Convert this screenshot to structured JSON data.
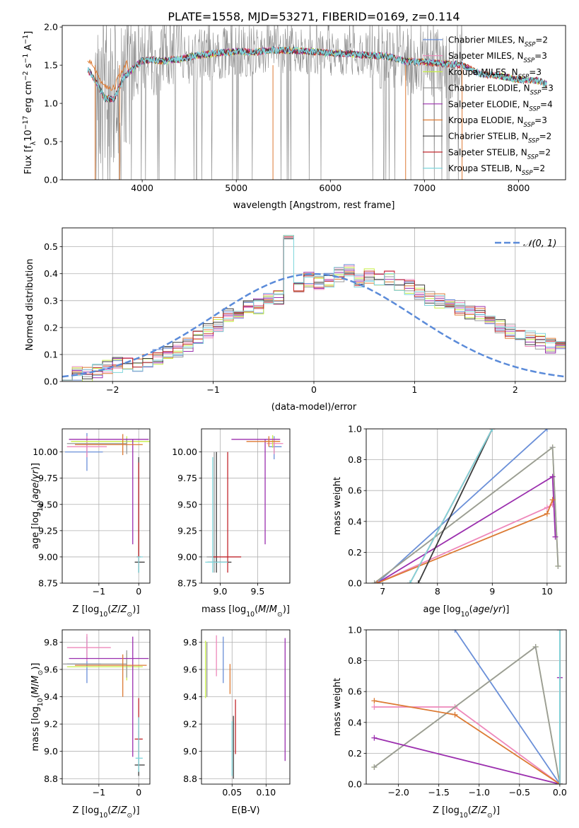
{
  "figure": {
    "title": "PLATE=1558, MJD=53271, FIBERID=0169, z=0.114"
  },
  "colors": {
    "Chabrier MILES": "#6a8fd8",
    "Salpeter MILES": "#ee88bb",
    "Kroupa MILES": "#c6ee44",
    "Chabrier ELODIE": "#9a9a9a",
    "Salpeter ELODIE": "#9b2fae",
    "Kroupa ELODIE": "#dc7a33",
    "Chabrier STELIB": "#3c3c3c",
    "Salpeter STELIB": "#c1272d",
    "Kroupa STELIB": "#7fd6dc"
  },
  "chart_data": [
    {
      "id": "spectrum",
      "type": "line",
      "title": "PLATE=1558, MJD=53271, FIBERID=0169, z=0.114",
      "xlabel": "wavelength [Angstrom, rest frame]",
      "ylabel": "Flux [f_λ 10^-17 erg cm^-2 s^-1 A^-1]",
      "xlim": [
        3150,
        8500
      ],
      "ylim": [
        0,
        2.02
      ],
      "xticks": [
        "4000",
        "5000",
        "6000",
        "7000",
        "8000"
      ],
      "yticks": [
        "0.0",
        "0.5",
        "1.0",
        "1.5",
        "2.0"
      ],
      "legend": "right",
      "legend_entries": [
        {
          "label": "Chabrier MILES, N",
          "sub": "SSP",
          "tail": "=2",
          "key": "Chabrier MILES"
        },
        {
          "label": "Salpeter MILES, N",
          "sub": "SSP",
          "tail": "=3",
          "key": "Salpeter MILES"
        },
        {
          "label": "Kroupa MILES, N",
          "sub": "SSP",
          "tail": "=3",
          "key": "Kroupa MILES"
        },
        {
          "label": "Chabrier ELODIE, N",
          "sub": "SSP",
          "tail": "=3",
          "key": "Chabrier ELODIE"
        },
        {
          "label": "Salpeter ELODIE, N",
          "sub": "SSP",
          "tail": "=4",
          "key": "Salpeter ELODIE"
        },
        {
          "label": "Kroupa ELODIE, N",
          "sub": "SSP",
          "tail": "=3",
          "key": "Kroupa ELODIE"
        },
        {
          "label": "Chabrier STELIB, N",
          "sub": "SSP",
          "tail": "=2",
          "key": "Chabrier STELIB"
        },
        {
          "label": "Salpeter STELIB, N",
          "sub": "SSP",
          "tail": "=2",
          "key": "Salpeter STELIB"
        },
        {
          "label": "Kroupa STELIB, N",
          "sub": "SSP",
          "tail": "=2",
          "key": "Kroupa STELIB"
        }
      ],
      "model_continuum": {
        "x": [
          3420,
          3500,
          3600,
          3700,
          3800,
          3900,
          4000,
          4100,
          4200,
          4400,
          4600,
          4800,
          5000,
          5200,
          5400,
          5600,
          5800,
          6000,
          6200,
          6400,
          6600,
          6800,
          7000,
          7200,
          7400,
          7600,
          7800,
          8000,
          8200,
          8300
        ],
        "y": [
          1.45,
          1.3,
          1.07,
          1.05,
          1.33,
          1.45,
          1.56,
          1.57,
          1.55,
          1.58,
          1.63,
          1.66,
          1.68,
          1.67,
          1.7,
          1.69,
          1.68,
          1.66,
          1.65,
          1.63,
          1.62,
          1.55,
          1.54,
          1.52,
          1.5,
          1.38,
          1.36,
          1.31,
          1.3,
          1.25
        ]
      }
    },
    {
      "id": "residuals",
      "type": "histogram",
      "xlabel": "(data-model)/error",
      "ylabel": "Normed distribution",
      "xlim": [
        -2.5,
        2.5
      ],
      "ylim": [
        0,
        0.57
      ],
      "xticks": [
        "−2",
        "−1",
        "0",
        "1",
        "2"
      ],
      "yticks": [
        "0.0",
        "0.1",
        "0.2",
        "0.3",
        "0.4",
        "0.5"
      ],
      "grid": true,
      "legend": "top-right",
      "gaussian_label": "𝒩(0, 1)",
      "bin_width": 0.1,
      "bin_start": -2.5,
      "base_values": [
        0.02,
        0.025,
        0.03,
        0.04,
        0.05,
        0.06,
        0.07,
        0.065,
        0.08,
        0.09,
        0.1,
        0.12,
        0.14,
        0.17,
        0.19,
        0.21,
        0.24,
        0.25,
        0.27,
        0.28,
        0.3,
        0.31,
        0.33,
        0.34,
        0.38,
        0.37,
        0.38,
        0.4,
        0.41,
        0.38,
        0.39,
        0.37,
        0.38,
        0.36,
        0.35,
        0.33,
        0.31,
        0.3,
        0.29,
        0.27,
        0.26,
        0.25,
        0.22,
        0.2,
        0.19,
        0.17,
        0.16,
        0.15,
        0.13,
        0.12,
        0.1
      ]
    },
    {
      "id": "age-Z",
      "type": "scatter",
      "xlabel": "Z [log10(Z/Z⊙)]",
      "ylabel": "age  [log10(age/yr)]",
      "xlim": [
        -1.92,
        0.28
      ],
      "ylim": [
        8.75,
        10.22
      ],
      "xticks": [
        -1,
        0
      ],
      "yticks": [
        8.75,
        9.0,
        9.25,
        9.5,
        9.75,
        10.0
      ],
      "points": [
        {
          "series": "Chabrier MILES",
          "x": -1.3,
          "y": 10.0,
          "xerr": [
            0.55,
            0.4
          ],
          "yerr": [
            0.18,
            0.18
          ]
        },
        {
          "series": "Salpeter MILES",
          "x": -1.3,
          "y": 10.05,
          "xerr": [
            0.5,
            0.5
          ],
          "yerr": [
            0.1,
            0.1
          ]
        },
        {
          "series": "Kroupa MILES",
          "x": -0.3,
          "y": 10.1,
          "xerr": [
            1.4,
            0.6
          ],
          "yerr": [
            0.05,
            0.05
          ]
        },
        {
          "series": "Chabrier ELODIE",
          "x": -0.3,
          "y": 10.08,
          "xerr": [
            1.5,
            0.0
          ],
          "yerr": [
            0.1,
            0.05
          ]
        },
        {
          "series": "Salpeter ELODIE",
          "x": -0.15,
          "y": 10.12,
          "xerr": [
            1.6,
            0.4
          ],
          "yerr": [
            1.0,
            0.0
          ]
        },
        {
          "series": "Kroupa ELODIE",
          "x": -0.4,
          "y": 10.07,
          "xerr": [
            1.2,
            0.5
          ],
          "yerr": [
            0.1,
            0.1
          ]
        },
        {
          "series": "Chabrier STELIB",
          "x": 0.0,
          "y": 8.95,
          "xerr": [
            0.1,
            0.15
          ],
          "yerr": [
            0.1,
            1.0
          ]
        },
        {
          "series": "Salpeter STELIB",
          "x": 0.0,
          "y": 9.0,
          "xerr": [
            0.05,
            0.05
          ],
          "yerr": [
            0.1,
            0.9
          ]
        },
        {
          "series": "Kroupa STELIB",
          "x": 0.0,
          "y": 9.0,
          "xerr": [
            0.05,
            0.1
          ],
          "yerr": [
            0.15,
            0.0
          ]
        }
      ]
    },
    {
      "id": "age-mass",
      "type": "scatter",
      "xlabel": "mass [log10(M/M⊙)]",
      "ylabel": "",
      "xlim": [
        8.75,
        9.93
      ],
      "ylim": [
        8.75,
        10.22
      ],
      "xticks": [
        9.0,
        9.5
      ],
      "yticks": [
        8.75,
        9.0,
        9.25,
        9.5,
        9.75,
        10.0
      ],
      "points": [
        {
          "series": "Chabrier MILES",
          "x": 9.72,
          "y": 10.05,
          "xerr": [
            0.07,
            0.1
          ],
          "yerr": [
            0.12,
            0.1
          ]
        },
        {
          "series": "Salpeter MILES",
          "x": 9.72,
          "y": 10.08,
          "xerr": [
            0.1,
            0.12
          ],
          "yerr": [
            0.1,
            0.05
          ]
        },
        {
          "series": "Kroupa MILES",
          "x": 9.7,
          "y": 10.1,
          "xerr": [
            0.1,
            0.1
          ],
          "yerr": [
            0.06,
            0.06
          ]
        },
        {
          "series": "Chabrier ELODIE",
          "x": 8.92,
          "y": 9.0,
          "xerr": [
            0.1,
            0.05
          ],
          "yerr": [
            0.15,
            1.0
          ]
        },
        {
          "series": "Salpeter ELODIE",
          "x": 9.6,
          "y": 10.12,
          "xerr": [
            0.45,
            0.2
          ],
          "yerr": [
            1.0,
            0.0
          ]
        },
        {
          "series": "Kroupa ELODIE",
          "x": 9.65,
          "y": 10.1,
          "xerr": [
            0.3,
            0.15
          ],
          "yerr": [
            0.05,
            0.05
          ]
        },
        {
          "series": "Chabrier STELIB",
          "x": 8.95,
          "y": 8.95,
          "xerr": [
            0.12,
            0.2
          ],
          "yerr": [
            0.1,
            1.05
          ]
        },
        {
          "series": "Salpeter STELIB",
          "x": 9.1,
          "y": 9.0,
          "xerr": [
            0.2,
            0.18
          ],
          "yerr": [
            0.15,
            1.0
          ]
        },
        {
          "series": "Kroupa STELIB",
          "x": 8.9,
          "y": 8.95,
          "xerr": [
            0.1,
            0.2
          ],
          "yerr": [
            0.1,
            1.0
          ]
        }
      ]
    },
    {
      "id": "massweight-age",
      "type": "line",
      "xlabel": "age  [log10(age/yr)]",
      "ylabel": "mass weight",
      "xlim": [
        6.7,
        10.35
      ],
      "ylim": [
        0,
        1.0
      ],
      "xticks": [
        7,
        8,
        9,
        10
      ],
      "yticks": [
        "0.0",
        "0.2",
        "0.4",
        "0.6",
        "0.8",
        "1.0"
      ],
      "grid": true,
      "series": [
        {
          "name": "Chabrier MILES",
          "x": [
            6.9,
            10.0
          ],
          "y": [
            0.0,
            1.0
          ]
        },
        {
          "name": "Salpeter MILES",
          "x": [
            6.9,
            10.0,
            10.1
          ],
          "y": [
            0.0,
            0.49,
            0.51
          ]
        },
        {
          "name": "Kroupa MILES",
          "x": [
            6.85,
            10.1,
            10.2
          ],
          "y": [
            0.0,
            0.88,
            0.11
          ]
        },
        {
          "name": "Chabrier ELODIE",
          "x": [
            6.85,
            10.1,
            10.2
          ],
          "y": [
            0.0,
            0.88,
            0.11
          ]
        },
        {
          "name": "Salpeter ELODIE",
          "x": [
            6.9,
            10.1,
            10.15
          ],
          "y": [
            0.0,
            0.69,
            0.3
          ]
        },
        {
          "name": "Kroupa ELODIE",
          "x": [
            6.9,
            10.0,
            10.1
          ],
          "y": [
            0.0,
            0.45,
            0.54
          ]
        },
        {
          "name": "Chabrier STELIB",
          "x": [
            7.65,
            9.0
          ],
          "y": [
            0.0,
            1.0
          ]
        },
        {
          "name": "Salpeter STELIB",
          "x": [
            7.5,
            9.0
          ],
          "y": [
            0.0,
            1.0
          ]
        },
        {
          "name": "Kroupa STELIB",
          "x": [
            7.5,
            9.0
          ],
          "y": [
            0.0,
            1.0
          ]
        }
      ]
    },
    {
      "id": "mass-Z",
      "type": "scatter",
      "xlabel": "Z [log10(Z/Z⊙)]",
      "ylabel": "mass [log10(M/M⊙)]",
      "xlim": [
        -1.92,
        0.28
      ],
      "ylim": [
        8.76,
        9.89
      ],
      "xticks": [
        -1,
        0
      ],
      "yticks": [
        8.8,
        9.0,
        9.2,
        9.4,
        9.6,
        9.8
      ],
      "points": [
        {
          "series": "Chabrier MILES",
          "x": -1.3,
          "y": 9.64,
          "xerr": [
            0.5,
            0.35
          ],
          "yerr": [
            0.14,
            0.2
          ]
        },
        {
          "series": "Salpeter MILES",
          "x": -1.3,
          "y": 9.76,
          "xerr": [
            0.5,
            0.6
          ],
          "yerr": [
            0.1,
            0.1
          ]
        },
        {
          "series": "Kroupa MILES",
          "x": -0.3,
          "y": 9.62,
          "xerr": [
            1.5,
            0.4
          ],
          "yerr": [
            0.1,
            0.1
          ]
        },
        {
          "series": "Chabrier ELODIE",
          "x": -0.3,
          "y": 9.64,
          "xerr": [
            1.6,
            0.0
          ],
          "yerr": [
            0.1,
            0.1
          ]
        },
        {
          "series": "Salpeter ELODIE",
          "x": -0.15,
          "y": 9.68,
          "xerr": [
            1.6,
            0.4
          ],
          "yerr": [
            0.72,
            0.16
          ]
        },
        {
          "series": "Kroupa ELODIE",
          "x": -0.4,
          "y": 9.63,
          "xerr": [
            1.2,
            0.6
          ],
          "yerr": [
            0.23,
            0.08
          ]
        },
        {
          "series": "Chabrier STELIB",
          "x": 0.0,
          "y": 8.9,
          "xerr": [
            0.1,
            0.15
          ],
          "yerr": [
            0.08,
            0.25
          ]
        },
        {
          "series": "Salpeter STELIB",
          "x": 0.0,
          "y": 9.09,
          "xerr": [
            0.1,
            0.1
          ],
          "yerr": [
            0.1,
            0.3
          ]
        },
        {
          "series": "Kroupa STELIB",
          "x": 0.0,
          "y": 8.95,
          "xerr": [
            0.08,
            0.1
          ],
          "yerr": [
            0.1,
            0.3
          ]
        }
      ]
    },
    {
      "id": "mass-EBV",
      "type": "scatter",
      "xlabel": "E(B-V)",
      "ylabel": "",
      "xlim": [
        0.005,
        0.135
      ],
      "ylim": [
        8.76,
        9.89
      ],
      "xticks": [
        0.05,
        0.1
      ],
      "yticks": [
        8.8,
        9.0,
        9.2,
        9.4,
        9.6,
        9.8
      ],
      "points": [
        {
          "series": "Chabrier MILES",
          "x": 0.037,
          "y": 9.67,
          "yerr": [
            0.17,
            0.17
          ]
        },
        {
          "series": "Salpeter MILES",
          "x": 0.027,
          "y": 9.7,
          "yerr": [
            0.15,
            0.15
          ]
        },
        {
          "series": "Kroupa MILES",
          "x": 0.011,
          "y": 9.6,
          "yerr": [
            0.21,
            0.21
          ]
        },
        {
          "series": "Chabrier ELODIE",
          "x": 0.013,
          "y": 9.6,
          "yerr": [
            0.2,
            0.2
          ]
        },
        {
          "series": "Salpeter ELODIE",
          "x": 0.128,
          "y": 9.38,
          "yerr": [
            0.45,
            0.45
          ]
        },
        {
          "series": "Kroupa ELODIE",
          "x": 0.047,
          "y": 9.52,
          "yerr": [
            0.1,
            0.12
          ]
        },
        {
          "series": "Chabrier STELIB",
          "x": 0.052,
          "y": 9.03,
          "yerr": [
            0.23,
            0.23
          ]
        },
        {
          "series": "Salpeter STELIB",
          "x": 0.055,
          "y": 9.18,
          "yerr": [
            0.2,
            0.2
          ]
        },
        {
          "series": "Kroupa STELIB",
          "x": 0.05,
          "y": 9.02,
          "yerr": [
            0.2,
            0.2
          ]
        }
      ]
    },
    {
      "id": "massweight-Z",
      "type": "line",
      "xlabel": "Z [log10(Z/Z⊙)]",
      "ylabel": "mass weight",
      "xlim": [
        -2.4,
        0.08
      ],
      "ylim": [
        0,
        1.0
      ],
      "xticks": [
        -2.0,
        -1.5,
        -1.0,
        -0.5,
        0.0
      ],
      "grid": true,
      "series": [
        {
          "name": "Chabrier MILES",
          "x": [
            -1.3,
            0.0
          ],
          "y": [
            1.0,
            0.0
          ]
        },
        {
          "name": "Salpeter MILES",
          "x": [
            -2.3,
            -1.3,
            0.0
          ],
          "y": [
            0.5,
            0.5,
            0.0
          ]
        },
        {
          "name": "Kroupa MILES",
          "x": [
            -2.3,
            -0.3,
            0.0
          ],
          "y": [
            0.11,
            0.89,
            0.0
          ]
        },
        {
          "name": "Chabrier ELODIE",
          "x": [
            -2.3,
            -0.3,
            0.0
          ],
          "y": [
            0.11,
            0.89,
            0.0
          ]
        },
        {
          "name": "Salpeter ELODIE",
          "x": [
            -2.3,
            0.0,
            0.0
          ],
          "y": [
            0.3,
            0.0,
            0.69
          ]
        },
        {
          "name": "Kroupa ELODIE",
          "x": [
            -2.3,
            -1.3,
            0.0
          ],
          "y": [
            0.54,
            0.45,
            0.0
          ]
        },
        {
          "name": "Chabrier STELIB",
          "x": [
            0.0,
            0.0
          ],
          "y": [
            0.0,
            1.0
          ]
        },
        {
          "name": "Salpeter STELIB",
          "x": [
            0.0,
            0.0
          ],
          "y": [
            0.0,
            1.0
          ]
        },
        {
          "name": "Kroupa STELIB",
          "x": [
            0.0,
            0.0
          ],
          "y": [
            0.0,
            1.0
          ]
        }
      ]
    }
  ]
}
